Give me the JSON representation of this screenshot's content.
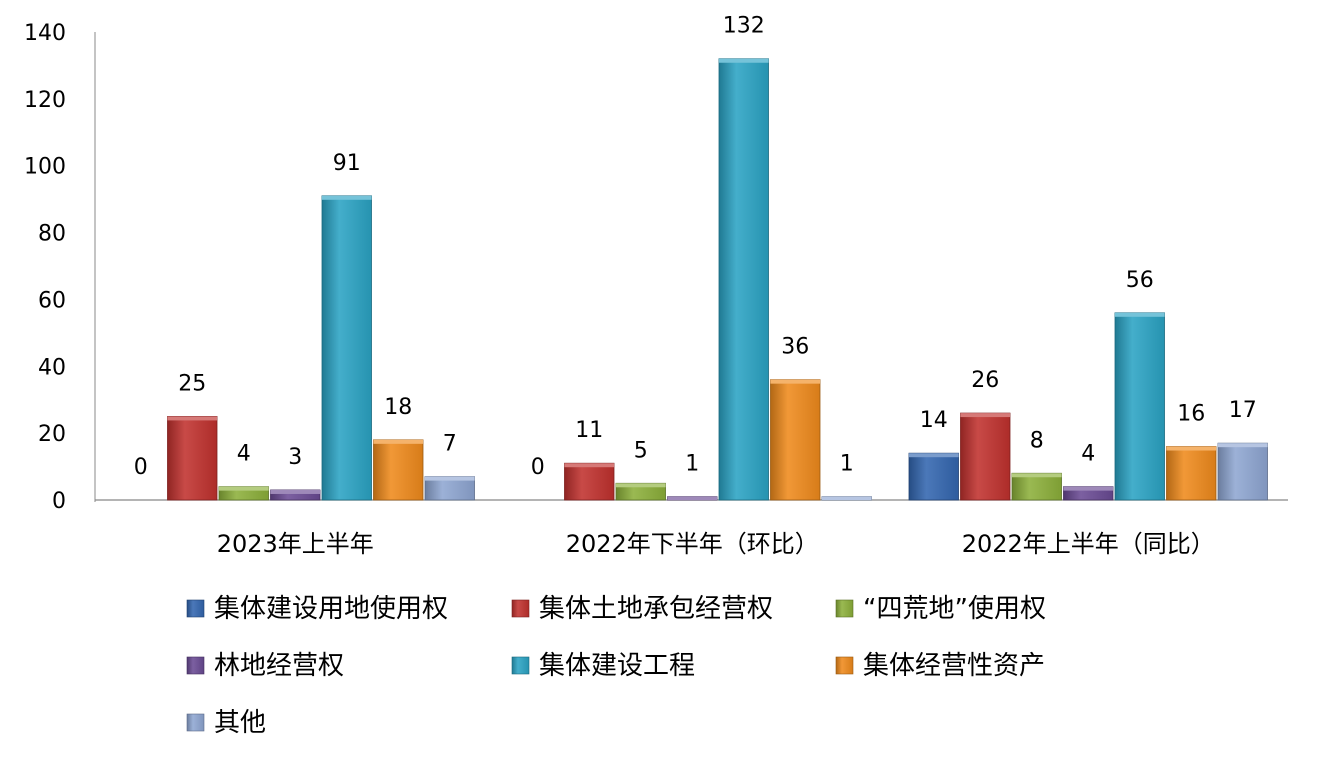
{
  "chart_data": {
    "type": "bar",
    "categories": [
      "2023年上半年",
      "2022年下半年（环比）",
      "2022年上半年（同比）"
    ],
    "series": [
      {
        "name": "集体建设用地使用权",
        "color": "#3366b0",
        "values": [
          0,
          0,
          14
        ]
      },
      {
        "name": "集体土地承包经营权",
        "color": "#c0312e",
        "values": [
          25,
          11,
          26
        ]
      },
      {
        "name": "“四荒地”使用权",
        "color": "#8cb03a",
        "values": [
          4,
          5,
          8
        ]
      },
      {
        "name": "林地经营权",
        "color": "#6a4a94",
        "values": [
          3,
          1,
          4
        ]
      },
      {
        "name": "集体建设工程",
        "color": "#2aa3c4",
        "values": [
          91,
          132,
          56
        ]
      },
      {
        "name": "集体经营性资产",
        "color": "#ef8a1c",
        "values": [
          18,
          36,
          16
        ]
      },
      {
        "name": "其他",
        "color": "#8ea6d2",
        "values": [
          7,
          1,
          17
        ]
      }
    ],
    "y_ticks": [
      "0",
      "20",
      "40",
      "60",
      "80",
      "100",
      "120",
      "140"
    ],
    "ylim": [
      0,
      140
    ],
    "grid": false,
    "legend_position": "bottom"
  }
}
